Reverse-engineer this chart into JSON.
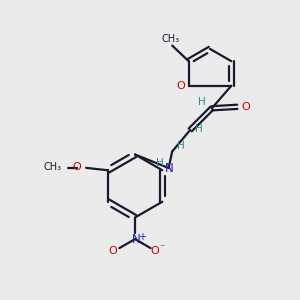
{
  "bg_color": "#ebebeb",
  "bond_color": "#1a1a2e",
  "oxygen_color": "#cc0000",
  "nitrogen_color": "#1a1acc",
  "h_color": "#2e8b8b",
  "figsize": [
    3.0,
    3.0
  ],
  "dpi": 100,
  "lw": 1.6,
  "off": 0.07,
  "xlim": [
    0,
    10
  ],
  "ylim": [
    0,
    10
  ]
}
